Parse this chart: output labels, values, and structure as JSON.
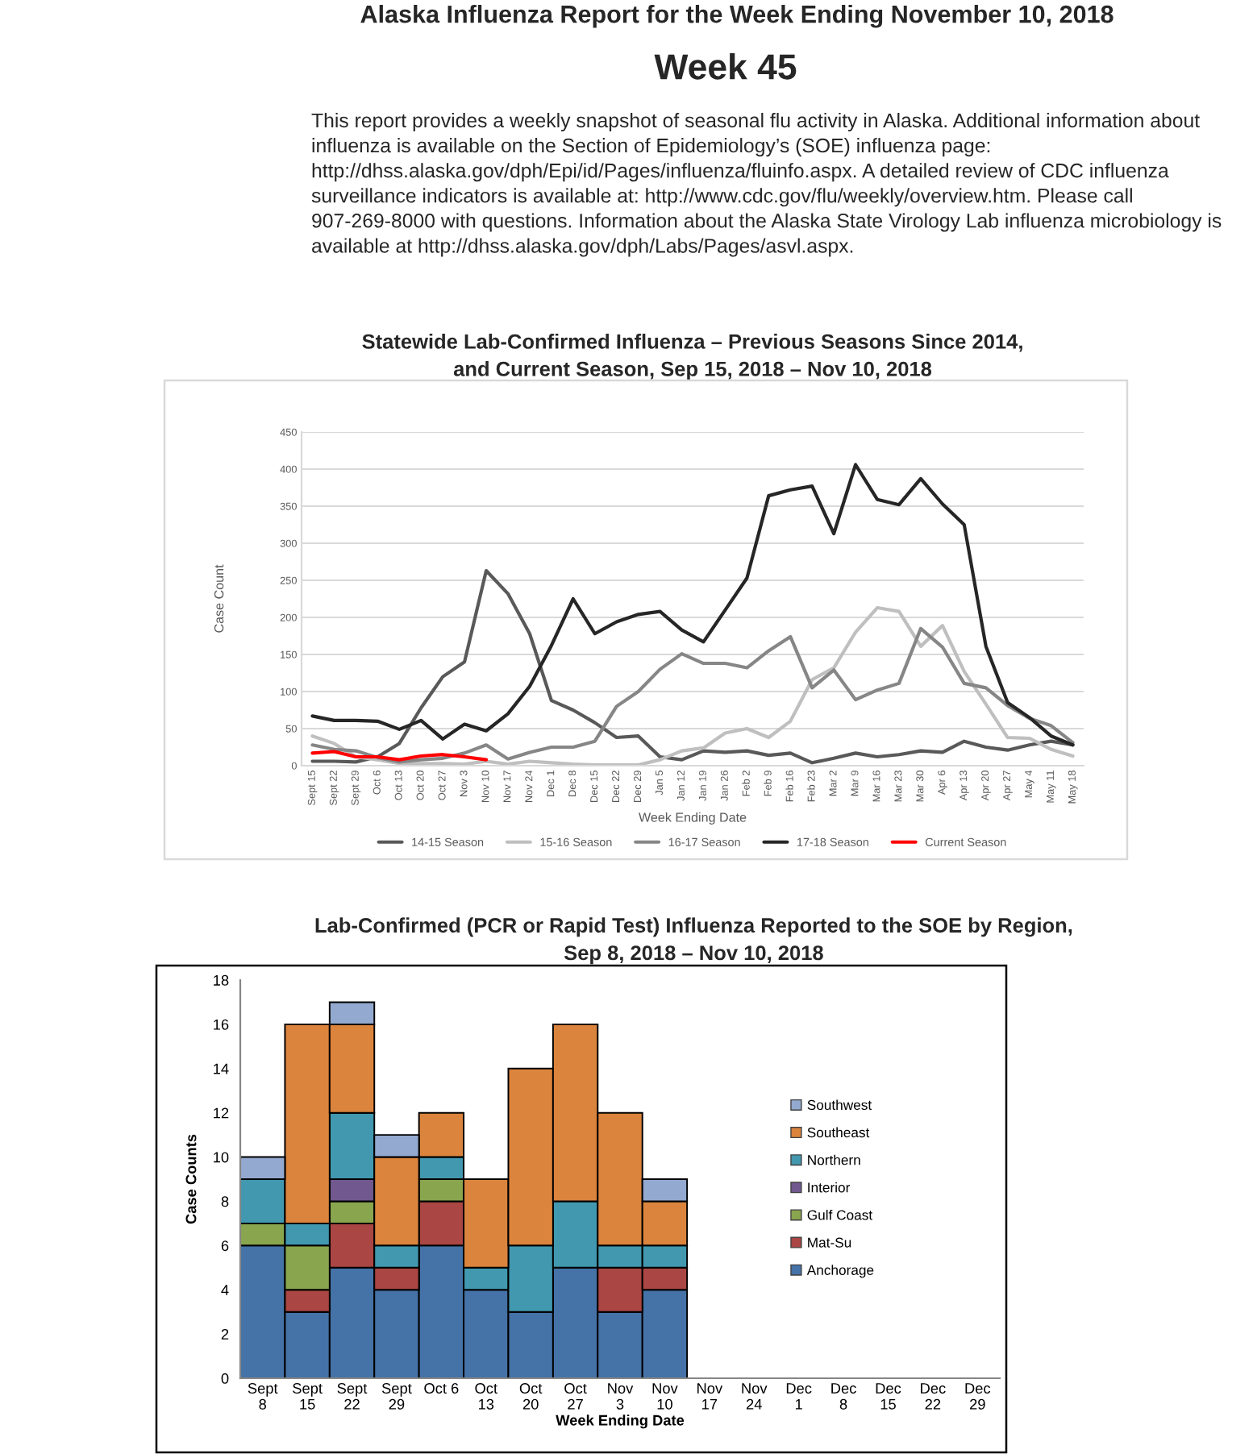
{
  "chart_data": [
    {
      "type": "other",
      "title": "Alaska Influenza Report for the Week Ending November 10, 2018",
      "subtitle": "Week 45",
      "annotations": [
        "This report provides a weekly snapshot of seasonal flu activity in Alaska. Additional information about influenza is available on the Section of Epidemiology’s (SOE) influenza page: http://dhss.alaska.gov/dph/Epi/id/Pages/influenza/fluinfo.aspx. A detailed review of CDC influenza surveillance indicators is available at: http://www.cdc.gov/flu/weekly/overview.htm. Please call 907-269-8000 with questions. Information about the Alaska State Virology Lab influenza microbiology is available at http://dhss.alaska.gov/dph/Labs/Pages/asvl.aspx."
      ]
    },
    {
      "type": "line",
      "title": "Statewide Lab-Confirmed Influenza – Previous Seasons Since 2014,\nand Current Season, Sep 15, 2018 – Nov 10, 2018",
      "xlabel": "Week Ending Date",
      "ylabel": "Case Count",
      "categories": [
        "Sept 15",
        "Sept 22",
        "Sept 29",
        "Oct 6",
        "Oct 13",
        "Oct 20",
        "Oct 27",
        "Nov 3",
        "Nov 10",
        "Nov 17",
        "Nov 24",
        "Dec 1",
        "Dec 8",
        "Dec 15",
        "Dec 22",
        "Dec 29",
        "Jan 5",
        "Jan 12",
        "Jan 19",
        "Jan 26",
        "Feb 2",
        "Feb 9",
        "Feb 16",
        "Feb 23",
        "Mar 2",
        "Mar 9",
        "Mar 16",
        "Mar 23",
        "Mar 30",
        "Apr 6",
        "Apr 13",
        "Apr 20",
        "Apr 27",
        "May 4",
        "May 11",
        "May 18"
      ],
      "series": [
        {
          "name": "14-15 Season",
          "color": "#595959",
          "values": [
            6,
            6,
            5,
            12,
            30,
            78,
            120,
            140,
            263,
            232,
            178,
            88,
            75,
            58,
            38,
            40,
            12,
            8,
            20,
            18,
            20,
            14,
            17,
            4,
            10,
            17,
            12,
            15,
            20,
            18,
            33,
            25,
            21,
            28,
            33,
            28
          ]
        },
        {
          "name": "15-16 Season",
          "color": "#bfbfbf",
          "values": [
            40,
            30,
            12,
            8,
            3,
            3,
            3,
            2,
            6,
            2,
            6,
            4,
            2,
            1,
            1,
            1,
            8,
            20,
            24,
            44,
            50,
            38,
            60,
            116,
            132,
            180,
            213,
            208,
            161,
            189,
            127,
            83,
            38,
            37,
            22,
            13
          ]
        },
        {
          "name": "16-17 Season",
          "color": "#868686",
          "values": [
            28,
            22,
            20,
            11,
            5,
            8,
            10,
            17,
            28,
            9,
            18,
            25,
            25,
            33,
            80,
            100,
            130,
            151,
            138,
            138,
            132,
            155,
            174,
            105,
            129,
            89,
            102,
            111,
            185,
            160,
            111,
            105,
            81,
            64,
            54,
            31
          ]
        },
        {
          "name": "17-18 Season",
          "color": "#262626",
          "values": [
            67,
            61,
            61,
            60,
            49,
            61,
            36,
            56,
            47,
            70,
            107,
            162,
            225,
            178,
            194,
            204,
            208,
            183,
            167,
            210,
            253,
            364,
            372,
            377,
            313,
            406,
            359,
            352,
            387,
            353,
            325,
            161,
            85,
            65,
            40,
            28
          ]
        },
        {
          "name": "Current Season",
          "color": "#ff0000",
          "values": [
            17,
            19,
            12,
            12,
            8,
            13,
            15,
            12,
            8,
            null,
            null,
            null,
            null,
            null,
            null,
            null,
            null,
            null,
            null,
            null,
            null,
            null,
            null,
            null,
            null,
            null,
            null,
            null,
            null,
            null,
            null,
            null,
            null,
            null,
            null,
            null
          ]
        }
      ],
      "ylim": [
        0,
        450
      ],
      "yticks": [
        0,
        50,
        100,
        150,
        200,
        250,
        300,
        350,
        400,
        450
      ],
      "grid": "y",
      "legend": "bottom"
    },
    {
      "type": "bar",
      "stacked": true,
      "title": "Lab-Confirmed (PCR or Rapid Test) Influenza Reported to the SOE by Region,\nSep 8, 2018 – Nov 10, 2018",
      "xlabel": "Week Ending Date",
      "ylabel": "Case Counts",
      "categories": [
        "Sept\n8",
        "Sept\n15",
        "Sept\n22",
        "Sept\n29",
        "Oct 6",
        "Oct\n13",
        "Oct\n20",
        "Oct\n27",
        "Nov\n3",
        "Nov\n10",
        "Nov\n17",
        "Nov\n24",
        "Dec\n1",
        "Dec\n8",
        "Dec\n15",
        "Dec\n22",
        "Dec\n29"
      ],
      "series": [
        {
          "name": "Anchorage",
          "color": "#4572a7",
          "values": [
            6,
            3,
            5,
            4,
            6,
            4,
            3,
            5,
            3,
            4,
            null,
            null,
            null,
            null,
            null,
            null,
            null
          ]
        },
        {
          "name": "Mat-Su",
          "color": "#aa4643",
          "values": [
            0,
            1,
            2,
            1,
            2,
            0,
            0,
            0,
            2,
            1,
            null,
            null,
            null,
            null,
            null,
            null,
            null
          ]
        },
        {
          "name": "Gulf Coast",
          "color": "#89a54e",
          "values": [
            1,
            2,
            1,
            0,
            1,
            0,
            0,
            0,
            0,
            0,
            null,
            null,
            null,
            null,
            null,
            null,
            null
          ]
        },
        {
          "name": "Interior",
          "color": "#71588f",
          "values": [
            0,
            0,
            1,
            0,
            0,
            0,
            0,
            0,
            0,
            0,
            null,
            null,
            null,
            null,
            null,
            null,
            null
          ]
        },
        {
          "name": "Northern",
          "color": "#4198af",
          "values": [
            2,
            1,
            3,
            1,
            1,
            1,
            3,
            3,
            1,
            1,
            null,
            null,
            null,
            null,
            null,
            null,
            null
          ]
        },
        {
          "name": "Southeast",
          "color": "#db843d",
          "values": [
            0,
            9,
            4,
            4,
            2,
            4,
            8,
            8,
            6,
            2,
            null,
            null,
            null,
            null,
            null,
            null,
            null
          ]
        },
        {
          "name": "Southwest",
          "color": "#93a9cf",
          "values": [
            1,
            0,
            1,
            1,
            0,
            0,
            0,
            0,
            0,
            1,
            null,
            null,
            null,
            null,
            null,
            null,
            null
          ]
        }
      ],
      "ylim": [
        0,
        18
      ],
      "yticks": [
        0,
        2,
        4,
        6,
        8,
        10,
        12,
        14,
        16,
        18
      ],
      "legend": "right"
    }
  ]
}
